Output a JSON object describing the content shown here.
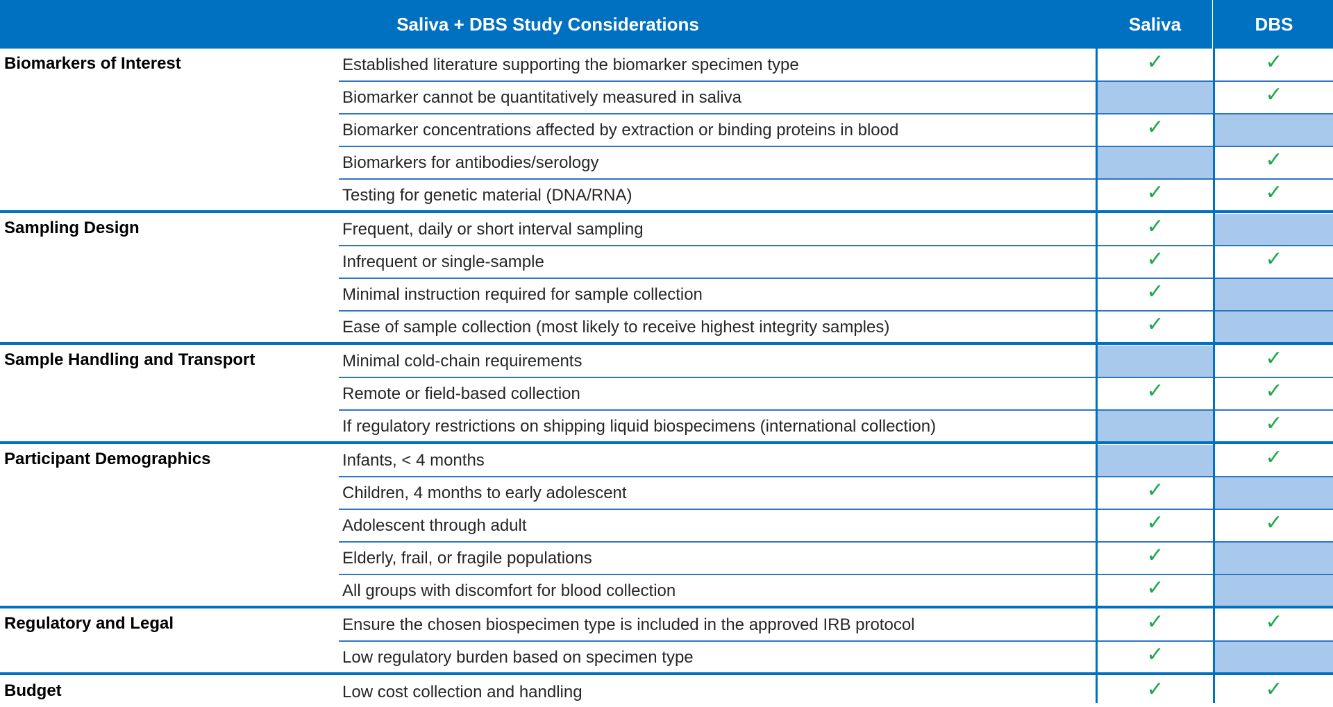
{
  "header": {
    "title": "Saliva + DBS Study Considerations",
    "saliva_label": "Saliva",
    "dbs_label": "DBS"
  },
  "check_symbol": "✓",
  "colors": {
    "header_bg": "#0070c0",
    "header_text": "#ffffff",
    "rule": "#0070c0",
    "empty_cell": "#a9c9ec",
    "check": "#1ea84b"
  },
  "groups": [
    {
      "name": "Biomarkers of Interest",
      "rows": [
        {
          "text": "Established literature supporting the biomarker specimen type",
          "saliva": true,
          "dbs": true
        },
        {
          "text": "Biomarker cannot be quantitatively measured in saliva",
          "saliva": false,
          "dbs": true
        },
        {
          "text": "Biomarker concentrations affected by extraction or binding proteins in blood",
          "saliva": true,
          "dbs": false
        },
        {
          "text": "Biomarkers for antibodies/serology",
          "saliva": false,
          "dbs": true
        },
        {
          "text": "Testing for genetic material (DNA/RNA)",
          "saliva": true,
          "dbs": true
        }
      ]
    },
    {
      "name": "Sampling Design",
      "rows": [
        {
          "text": "Frequent, daily or short interval sampling",
          "saliva": true,
          "dbs": false
        },
        {
          "text": "Infrequent or single-sample",
          "saliva": true,
          "dbs": true
        },
        {
          "text": "Minimal instruction required for sample collection",
          "saliva": true,
          "dbs": false
        },
        {
          "text": "Ease of sample collection (most likely to receive highest integrity samples)",
          "saliva": true,
          "dbs": false
        }
      ]
    },
    {
      "name": "Sample Handling and Transport",
      "rows": [
        {
          "text": "Minimal cold-chain requirements",
          "saliva": false,
          "dbs": true
        },
        {
          "text": "Remote or field-based collection",
          "saliva": true,
          "dbs": true
        },
        {
          "text": "If regulatory restrictions on shipping liquid biospecimens (international collection)",
          "saliva": false,
          "dbs": true
        }
      ]
    },
    {
      "name": "Participant Demographics",
      "rows": [
        {
          "text": "Infants, < 4 months",
          "saliva": false,
          "dbs": true
        },
        {
          "text": "Children, 4 months to early adolescent",
          "saliva": true,
          "dbs": false
        },
        {
          "text": "Adolescent through adult",
          "saliva": true,
          "dbs": true
        },
        {
          "text": "Elderly, frail, or fragile populations",
          "saliva": true,
          "dbs": false
        },
        {
          "text": "All groups with discomfort for blood collection",
          "saliva": true,
          "dbs": false
        }
      ]
    },
    {
      "name": "Regulatory and Legal",
      "rows": [
        {
          "text": "Ensure the chosen biospecimen type is included in the approved IRB protocol",
          "saliva": true,
          "dbs": true
        },
        {
          "text": "Low regulatory burden based on specimen type",
          "saliva": true,
          "dbs": false
        }
      ]
    },
    {
      "name": "Budget",
      "rows": [
        {
          "text": "Low cost collection and handling",
          "saliva": true,
          "dbs": true
        }
      ]
    }
  ]
}
